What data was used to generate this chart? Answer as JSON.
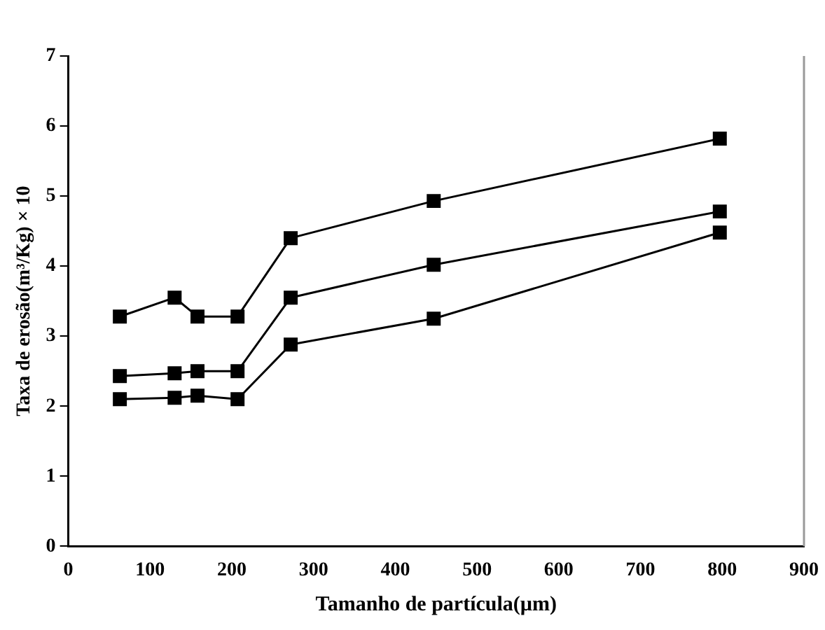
{
  "chart_data": {
    "type": "line",
    "xlabel": "Tamanho de partícula(µm)",
    "ylabel": "Taxa de erosão(m³/Kg) × 10",
    "x": [
      63,
      130,
      158,
      207,
      272,
      447,
      797
    ],
    "series": [
      {
        "color": "#000000",
        "values": [
          3.28,
          3.55,
          3.28,
          3.28,
          4.4,
          4.93,
          5.82
        ]
      },
      {
        "color": "#000000",
        "values": [
          2.43,
          2.47,
          2.5,
          2.5,
          3.55,
          4.02,
          4.78
        ]
      },
      {
        "color": "#000000",
        "values": [
          2.1,
          2.12,
          2.15,
          2.1,
          2.88,
          3.25,
          4.48
        ]
      }
    ],
    "xlim": [
      0,
      900
    ],
    "xticks": [
      0,
      100,
      200,
      300,
      400,
      500,
      600,
      700,
      800,
      900
    ],
    "ylim": [
      0,
      7
    ],
    "yticks": [
      0,
      1,
      2,
      3,
      4,
      5,
      6,
      7
    ],
    "grid": false,
    "legend": false,
    "marker": "square",
    "line_style": "solid"
  }
}
